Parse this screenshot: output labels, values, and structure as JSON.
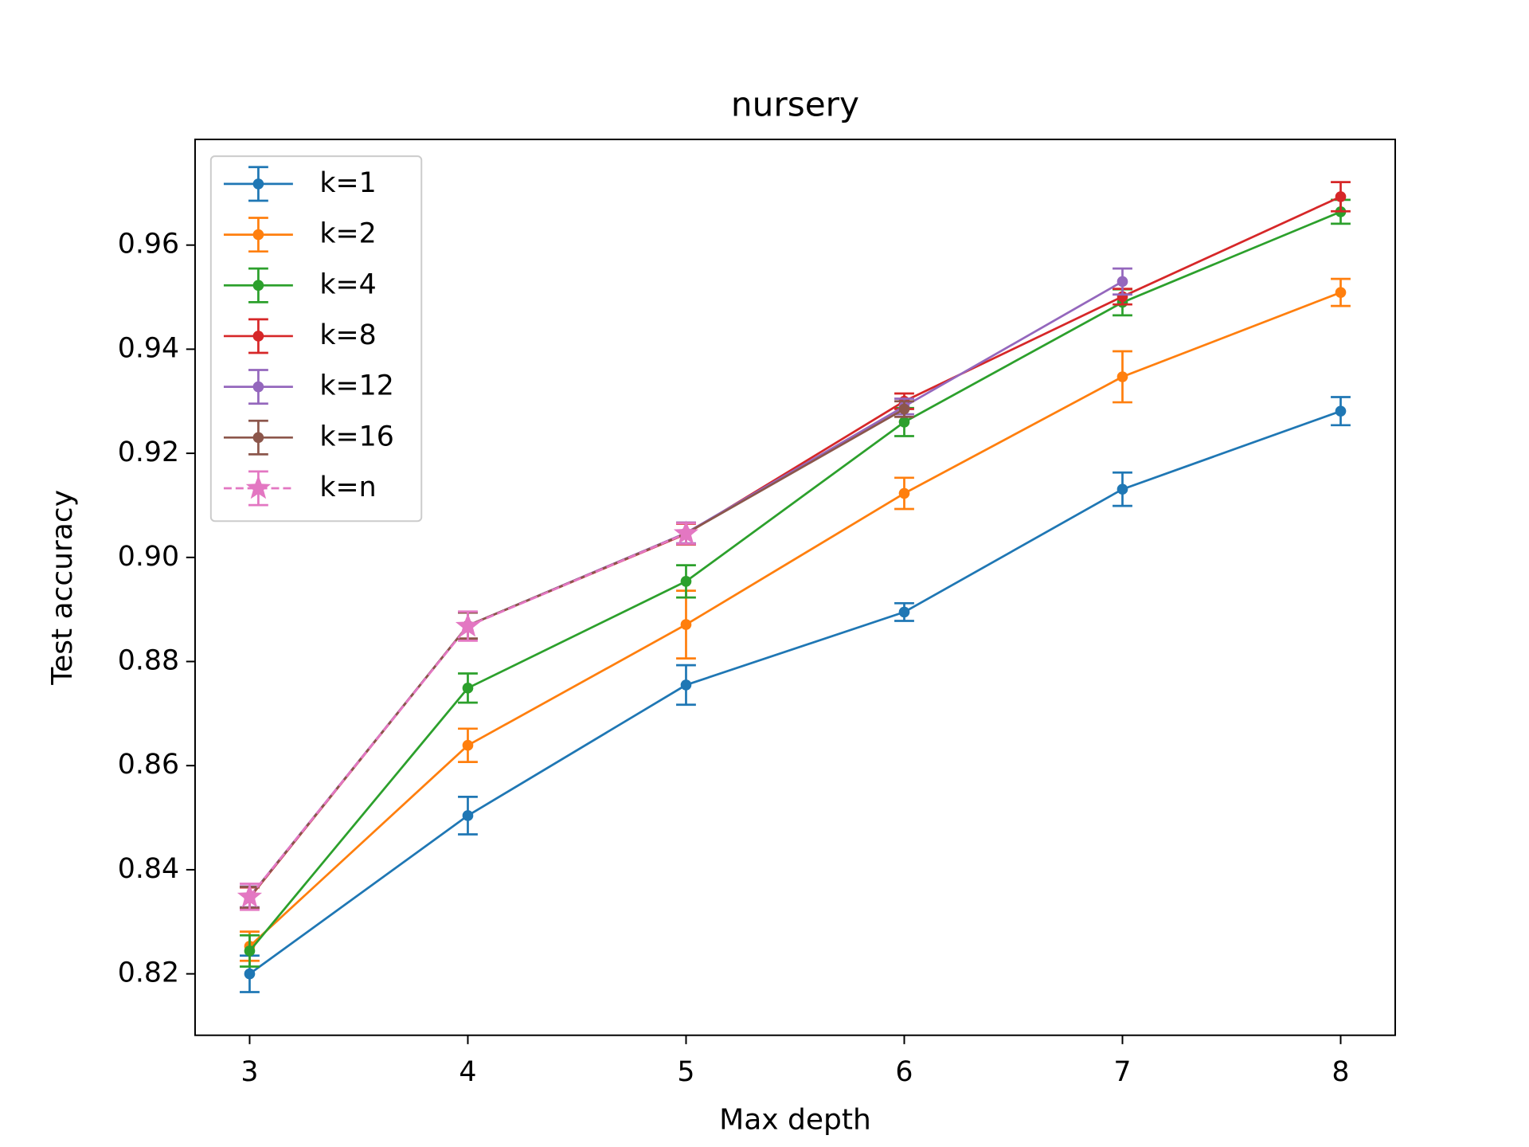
{
  "chart_data": {
    "type": "line",
    "title": "nursery",
    "xlabel": "Max depth",
    "ylabel": "Test accuracy",
    "x": [
      3,
      4,
      5,
      6,
      7,
      8
    ],
    "xlim": [
      2.75,
      8.25
    ],
    "xticks": [
      3,
      4,
      5,
      6,
      7,
      8
    ],
    "ylim": [
      0.8082,
      0.9803
    ],
    "yticks": [
      0.82,
      0.84,
      0.86,
      0.88,
      {
        "value": 0.9,
        "label": "0.90"
      },
      0.92,
      0.94,
      0.96
    ],
    "legend": "upper left",
    "series": [
      {
        "name": "k=1",
        "color": "#1f77b4",
        "marker": "circle",
        "linestyle": "solid",
        "values": [
          0.82,
          0.8504,
          0.8755,
          0.8895,
          0.9131,
          0.9281
        ],
        "errors": [
          0.0035,
          0.0036,
          0.0038,
          0.0017,
          0.0032,
          0.0027
        ]
      },
      {
        "name": "k=2",
        "color": "#ff7f0e",
        "marker": "circle",
        "linestyle": "solid",
        "values": [
          0.8253,
          0.8639,
          0.8871,
          0.9123,
          0.9347,
          0.9509
        ],
        "errors": [
          0.0028,
          0.0032,
          0.0065,
          0.003,
          0.0049,
          0.0026
        ]
      },
      {
        "name": "k=4",
        "color": "#2ca02c",
        "marker": "circle",
        "linestyle": "solid",
        "values": [
          0.8244,
          0.8749,
          0.8954,
          0.926,
          0.949,
          0.9664
        ],
        "errors": [
          0.003,
          0.0028,
          0.0031,
          0.0027,
          0.0025,
          0.0023
        ]
      },
      {
        "name": "k=8",
        "color": "#d62728",
        "marker": "circle",
        "linestyle": "solid",
        "values": [
          0.8346,
          0.8869,
          0.9045,
          0.93,
          0.9501,
          0.9693
        ],
        "errors": [
          0.002,
          0.0025,
          0.002,
          0.0015,
          0.0015,
          0.0028
        ]
      },
      {
        "name": "k=12",
        "color": "#9467bd",
        "marker": "circle",
        "linestyle": "solid",
        "values": [
          0.8348,
          0.8869,
          0.9047,
          0.929,
          0.953,
          null
        ],
        "errors": [
          0.002,
          0.0025,
          0.002,
          0.0015,
          0.0025,
          null
        ]
      },
      {
        "name": "k=16",
        "color": "#8c564b",
        "marker": "circle",
        "linestyle": "solid",
        "values": [
          0.8347,
          0.8869,
          0.9046,
          0.9285,
          null,
          null
        ],
        "errors": [
          0.002,
          0.0025,
          0.002,
          0.0015,
          null,
          null
        ]
      },
      {
        "name": "k=n",
        "color": "#e377c2",
        "marker": "star",
        "linestyle": "dashed",
        "values": [
          0.8348,
          0.8868,
          0.9046,
          null,
          null,
          null
        ],
        "errors": [
          0.0025,
          0.0028,
          0.002,
          null,
          null,
          null
        ]
      }
    ]
  }
}
